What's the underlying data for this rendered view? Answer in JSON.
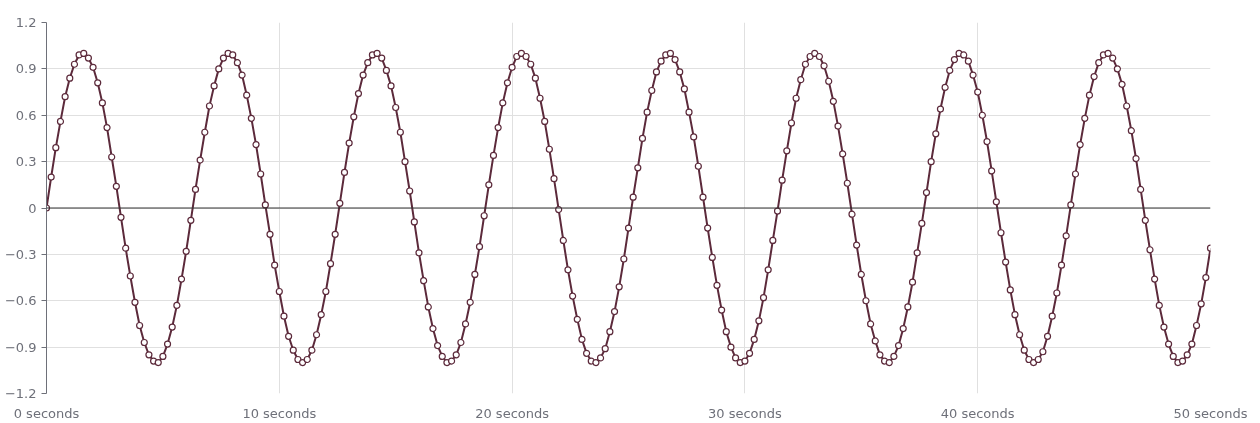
{
  "chart_data": {
    "type": "line",
    "marker": "circle",
    "line_style": "solid",
    "grid": true,
    "xlim": [
      0,
      50
    ],
    "ylim": [
      -1.2,
      1.2
    ],
    "xticks": [
      {
        "value": 0,
        "label": "0 seconds"
      },
      {
        "value": 10,
        "label": "10 seconds"
      },
      {
        "value": 20,
        "label": "20 seconds"
      },
      {
        "value": 30,
        "label": "30 seconds"
      },
      {
        "value": 40,
        "label": "40 seconds"
      },
      {
        "value": 50,
        "label": "50 seconds"
      }
    ],
    "yticks": [
      -1.2,
      -0.9,
      -0.6,
      -0.3,
      0,
      0.3,
      0.6,
      0.9,
      1.2
    ],
    "x": [
      0,
      0.2,
      0.4,
      0.6,
      0.8,
      1,
      1.2,
      1.4,
      1.6,
      1.8,
      2,
      2.2,
      2.4,
      2.6,
      2.8,
      3,
      3.2,
      3.4,
      3.6,
      3.8,
      4,
      4.2,
      4.4,
      4.6,
      4.8,
      5,
      5.2,
      5.4,
      5.6,
      5.8,
      6,
      6.2,
      6.4,
      6.6,
      6.8,
      7,
      7.2,
      7.4,
      7.6,
      7.8,
      8,
      8.2,
      8.4,
      8.6,
      8.8,
      9,
      9.2,
      9.4,
      9.6,
      9.8,
      10,
      10.2,
      10.4,
      10.6,
      10.8,
      11,
      11.2,
      11.4,
      11.6,
      11.8,
      12,
      12.2,
      12.4,
      12.6,
      12.8,
      13,
      13.2,
      13.4,
      13.6,
      13.8,
      14,
      14.2,
      14.4,
      14.6,
      14.8,
      15,
      15.2,
      15.4,
      15.6,
      15.8,
      16,
      16.2,
      16.4,
      16.6,
      16.8,
      17,
      17.2,
      17.4,
      17.6,
      17.8,
      18,
      18.2,
      18.4,
      18.6,
      18.8,
      19,
      19.2,
      19.4,
      19.6,
      19.8,
      20,
      20.2,
      20.4,
      20.6,
      20.8,
      21,
      21.2,
      21.4,
      21.6,
      21.8,
      22,
      22.2,
      22.4,
      22.6,
      22.8,
      23,
      23.2,
      23.4,
      23.6,
      23.8,
      24,
      24.2,
      24.4,
      24.6,
      24.8,
      25,
      25.2,
      25.4,
      25.6,
      25.8,
      26,
      26.2,
      26.4,
      26.6,
      26.8,
      27,
      27.2,
      27.4,
      27.6,
      27.8,
      28,
      28.2,
      28.4,
      28.6,
      28.8,
      29,
      29.2,
      29.4,
      29.6,
      29.8,
      30,
      30.2,
      30.4,
      30.6,
      30.8,
      31,
      31.2,
      31.4,
      31.6,
      31.8,
      32,
      32.2,
      32.4,
      32.6,
      32.8,
      33,
      33.2,
      33.4,
      33.6,
      33.8,
      34,
      34.2,
      34.4,
      34.6,
      34.8,
      35,
      35.2,
      35.4,
      35.6,
      35.8,
      36,
      36.2,
      36.4,
      36.6,
      36.8,
      37,
      37.2,
      37.4,
      37.6,
      37.8,
      38,
      38.2,
      38.4,
      38.6,
      38.8,
      39,
      39.2,
      39.4,
      39.6,
      39.8,
      40,
      40.2,
      40.4,
      40.6,
      40.8,
      41,
      41.2,
      41.4,
      41.6,
      41.8,
      42,
      42.2,
      42.4,
      42.6,
      42.8,
      43,
      43.2,
      43.4,
      43.6,
      43.8,
      44,
      44.2,
      44.4,
      44.6,
      44.8,
      45,
      45.2,
      45.4,
      45.6,
      45.8,
      46,
      46.2,
      46.4,
      46.6,
      46.8,
      47,
      47.2,
      47.4,
      47.6,
      47.8,
      48,
      48.2,
      48.4,
      48.6,
      48.8,
      49,
      49.2,
      49.4,
      49.6,
      49.8,
      50
    ],
    "series": [
      {
        "color": "#5c2a3b",
        "values": [
          0,
          0.2,
          0.39,
          0.56,
          0.72,
          0.84,
          0.93,
          0.99,
          1.0,
          0.97,
          0.91,
          0.81,
          0.68,
          0.52,
          0.33,
          0.14,
          -0.06,
          -0.26,
          -0.44,
          -0.61,
          -0.76,
          -0.87,
          -0.95,
          -0.99,
          -1.0,
          -0.96,
          -0.88,
          -0.77,
          -0.63,
          -0.46,
          -0.28,
          -0.08,
          0.12,
          0.31,
          0.49,
          0.66,
          0.79,
          0.9,
          0.97,
          1.0,
          0.99,
          0.94,
          0.86,
          0.73,
          0.58,
          0.41,
          0.22,
          0.02,
          -0.17,
          -0.37,
          -0.54,
          -0.7,
          -0.83,
          -0.92,
          -0.98,
          -1.0,
          -0.98,
          -0.92,
          -0.82,
          -0.69,
          -0.54,
          -0.36,
          -0.17,
          0.03,
          0.23,
          0.42,
          0.59,
          0.74,
          0.86,
          0.94,
          0.99,
          1.0,
          0.97,
          0.89,
          0.79,
          0.65,
          0.49,
          0.3,
          0.11,
          -0.09,
          -0.29,
          -0.47,
          -0.64,
          -0.78,
          -0.89,
          -0.96,
          -1.0,
          -0.99,
          -0.95,
          -0.87,
          -0.75,
          -0.61,
          -0.43,
          -0.25,
          -0.05,
          0.15,
          0.34,
          0.52,
          0.68,
          0.81,
          0.91,
          0.98,
          1.0,
          0.98,
          0.93,
          0.84,
          0.71,
          0.56,
          0.38,
          0.19,
          -0.01,
          -0.21,
          -0.4,
          -0.57,
          -0.72,
          -0.85,
          -0.94,
          -0.99,
          -1.0,
          -0.97,
          -0.91,
          -0.8,
          -0.67,
          -0.51,
          -0.33,
          -0.13,
          0.07,
          0.26,
          0.45,
          0.62,
          0.76,
          0.88,
          0.95,
          0.99,
          1.0,
          0.96,
          0.88,
          0.77,
          0.62,
          0.46,
          0.27,
          0.07,
          -0.13,
          -0.32,
          -0.5,
          -0.66,
          -0.8,
          -0.9,
          -0.97,
          -1.0,
          -0.99,
          -0.94,
          -0.85,
          -0.73,
          -0.58,
          -0.4,
          -0.21,
          -0.02,
          0.18,
          0.37,
          0.55,
          0.71,
          0.83,
          0.93,
          0.98,
          1.0,
          0.98,
          0.92,
          0.82,
          0.69,
          0.53,
          0.35,
          0.16,
          -0.04,
          -0.24,
          -0.43,
          -0.6,
          -0.75,
          -0.86,
          -0.95,
          -0.99,
          -1.0,
          -0.96,
          -0.89,
          -0.78,
          -0.64,
          -0.48,
          -0.29,
          -0.1,
          0.1,
          0.3,
          0.48,
          0.64,
          0.78,
          0.89,
          0.96,
          1.0,
          0.99,
          0.95,
          0.86,
          0.75,
          0.6,
          0.43,
          0.24,
          0.04,
          -0.16,
          -0.35,
          -0.53,
          -0.69,
          -0.82,
          -0.92,
          -0.98,
          -1.0,
          -0.98,
          -0.93,
          -0.83,
          -0.7,
          -0.55,
          -0.37,
          -0.18,
          0.02,
          0.22,
          0.41,
          0.58,
          0.73,
          0.85,
          0.94,
          0.99,
          1.0,
          0.97,
          0.9,
          0.8,
          0.66,
          0.5,
          0.32,
          0.12,
          -0.08,
          -0.27,
          -0.46,
          -0.63,
          -0.77,
          -0.88,
          -0.96,
          -1.0,
          -0.99,
          -0.95,
          -0.88,
          -0.76,
          -0.62,
          -0.45,
          -0.26
        ]
      }
    ]
  }
}
